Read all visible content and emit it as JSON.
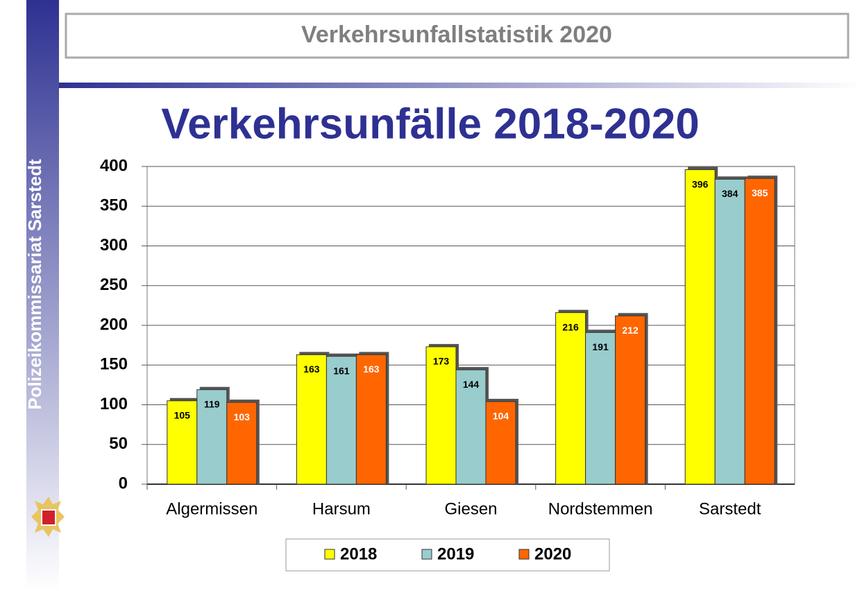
{
  "header": {
    "title": "Verkehrsunfallstatistik 2020"
  },
  "sidebar": {
    "text": "Polizeikommissariat Sarstedt"
  },
  "chart_data": {
    "type": "bar",
    "title": "Verkehrsunfälle 2018-2020",
    "categories": [
      "Algermissen",
      "Harsum",
      "Giesen",
      "Nordstemmen",
      "Sarstedt"
    ],
    "series": [
      {
        "name": "2018",
        "color": "#ffff00",
        "label_color": "#000000",
        "values": [
          105,
          163,
          173,
          216,
          396
        ]
      },
      {
        "name": "2019",
        "color": "#99cccc",
        "label_color": "#000000",
        "values": [
          119,
          161,
          144,
          191,
          384
        ]
      },
      {
        "name": "2020",
        "color": "#ff6600",
        "label_color": "#ffffff",
        "values": [
          103,
          163,
          104,
          212,
          385
        ]
      }
    ],
    "ylim": [
      0,
      400
    ],
    "yticks": [
      0,
      50,
      100,
      150,
      200,
      250,
      300,
      350,
      400
    ],
    "grid": true,
    "legend": "bottom"
  }
}
